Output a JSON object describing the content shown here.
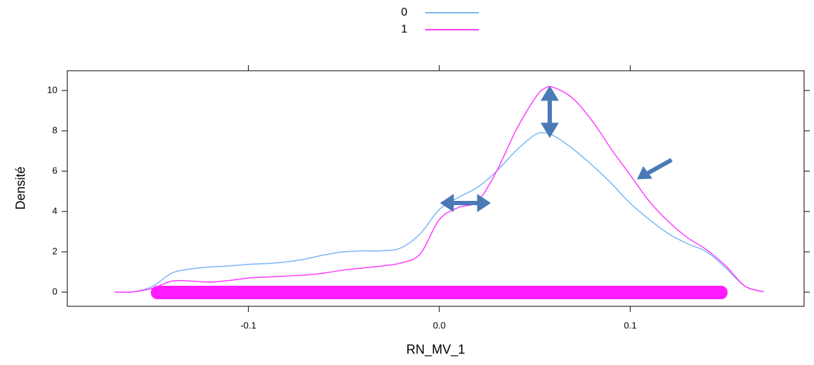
{
  "chart_data": {
    "type": "line",
    "x_label": "RN_MV_1",
    "y_label": "Densité",
    "x": [
      -0.17,
      -0.16,
      -0.15,
      -0.14,
      -0.13,
      -0.12,
      -0.11,
      -0.1,
      -0.09,
      -0.08,
      -0.07,
      -0.06,
      -0.05,
      -0.04,
      -0.03,
      -0.02,
      -0.01,
      0.0,
      0.01,
      0.02,
      0.03,
      0.04,
      0.05,
      0.055,
      0.06,
      0.07,
      0.08,
      0.09,
      0.1,
      0.11,
      0.12,
      0.13,
      0.14,
      0.15,
      0.16,
      0.17
    ],
    "series": [
      {
        "name": "0",
        "color": "#7ab8f5",
        "values": [
          0,
          0.02,
          0.3,
          0.95,
          1.15,
          1.25,
          1.3,
          1.38,
          1.42,
          1.5,
          1.65,
          1.85,
          2.0,
          2.05,
          2.05,
          2.2,
          2.9,
          4.1,
          4.7,
          5.2,
          6.0,
          7.0,
          7.8,
          7.9,
          7.75,
          7.1,
          6.3,
          5.4,
          4.4,
          3.6,
          2.9,
          2.4,
          2.0,
          1.2,
          0.3,
          0.02
        ]
      },
      {
        "name": "1",
        "color": "#ff3cff",
        "values": [
          0,
          0.02,
          0.2,
          0.55,
          0.55,
          0.5,
          0.58,
          0.7,
          0.75,
          0.8,
          0.85,
          0.95,
          1.1,
          1.2,
          1.3,
          1.45,
          1.9,
          3.6,
          4.2,
          4.5,
          6.0,
          8.0,
          9.6,
          10.1,
          10.15,
          9.6,
          8.5,
          7.1,
          5.8,
          4.5,
          3.5,
          2.7,
          2.1,
          1.3,
          0.3,
          0.02
        ]
      }
    ],
    "xlim": [
      -0.1948,
      0.191
    ],
    "ylim": [
      -0.7,
      10.98
    ],
    "xticks": [
      -0.1,
      {
        "value": 0,
        "label": "0.0"
      },
      0.1
    ],
    "yticks": [
      0,
      2,
      4,
      6,
      8,
      10
    ],
    "legend": "top",
    "grid": false
  }
}
